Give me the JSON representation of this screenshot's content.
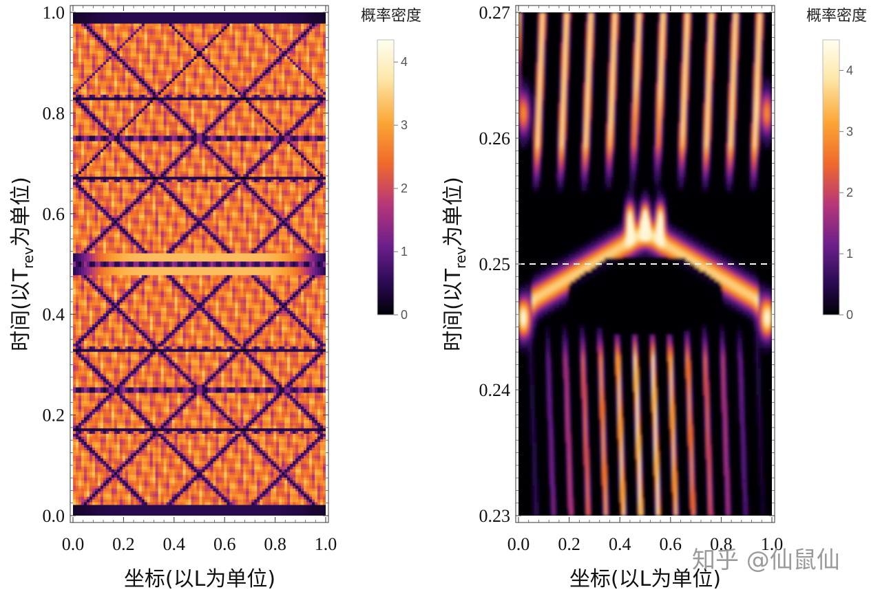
{
  "chart_data": [
    {
      "type": "heatmap",
      "xlabel": "坐标(以L为单位)",
      "ylabel_parts": {
        "pre": "时间(以T",
        "sub": "rev",
        "post": "为单位)"
      },
      "xlim": [
        0.0,
        1.0
      ],
      "ylim": [
        0.0,
        1.0
      ],
      "x_ticks": [
        "0.0",
        "0.2",
        "0.4",
        "0.6",
        "0.8",
        "1.0"
      ],
      "y_ticks": [
        "0.0",
        "0.2",
        "0.4",
        "0.6",
        "0.8",
        "1.0"
      ],
      "x_tick_values": [
        0.0,
        0.2,
        0.4,
        0.6,
        0.8,
        1.0
      ],
      "y_tick_values": [
        0.0,
        0.2,
        0.4,
        0.6,
        0.8,
        1.0
      ],
      "colorbar": {
        "title": "概率密度",
        "ticks": [
          "0",
          "1",
          "2",
          "3",
          "4"
        ],
        "tick_values": [
          0,
          1,
          2,
          3,
          4
        ],
        "max": 4.35
      },
      "colormap": [
        "#000004",
        "#2c0b55",
        "#6a1f8a",
        "#b63679",
        "#f06a2b",
        "#fca636",
        "#fde7a9",
        "#fffff0"
      ],
      "pattern": "quantum carpet: probability density of a wave packet in an infinite square well over one revival time",
      "description": "Crossing diagonal dark channels; full revival at t=0 and t=1, mirror revival at t=0.5, fractional revivals at t=0.25 and 0.75"
    },
    {
      "type": "heatmap",
      "xlabel": "坐标(以L为单位)",
      "ylabel_parts": {
        "pre": "时间(以T",
        "sub": "rev",
        "post": "为单位)"
      },
      "xlim": [
        0.0,
        1.0
      ],
      "ylim": [
        0.23,
        0.27
      ],
      "x_ticks": [
        "0.0",
        "0.2",
        "0.4",
        "0.6",
        "0.8",
        "1.0"
      ],
      "y_ticks": [
        "0.23",
        "0.24",
        "0.25",
        "0.26",
        "0.27"
      ],
      "x_tick_values": [
        0.0,
        0.2,
        0.4,
        0.6,
        0.8,
        1.0
      ],
      "y_tick_values": [
        0.23,
        0.24,
        0.25,
        0.26,
        0.27
      ],
      "reference_line": {
        "y": 0.25,
        "style": "dashed",
        "color": "#ffffff"
      },
      "colorbar": {
        "title": "概率密度",
        "ticks": [
          "0",
          "1",
          "2",
          "3",
          "4"
        ],
        "tick_values": [
          0,
          1,
          2,
          3,
          4
        ],
        "max": 4.5
      },
      "colormap": [
        "#000004",
        "#2c0b55",
        "#6a1f8a",
        "#b63679",
        "#f06a2b",
        "#fca636",
        "#fde7a9",
        "#fffff0"
      ],
      "pattern": "zoom near t=0.25: two packets meeting at the center with interference fringes",
      "description": "V-shaped bright bands meet at x=0.5 just above t=0.25, vertical interference fringes above and below"
    }
  ],
  "watermark": {
    "text": "知乎 @仙鼠仙"
  }
}
